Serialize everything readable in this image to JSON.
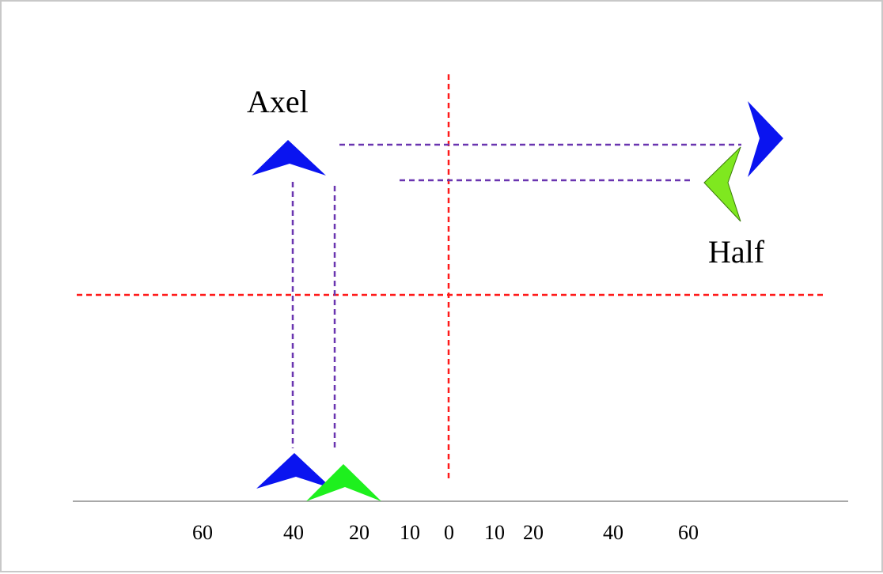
{
  "labels": {
    "axel": "Axel",
    "half": "Half"
  },
  "ticks": [
    "60",
    "40",
    "20",
    "10",
    "0",
    "10",
    "20",
    "40",
    "60"
  ],
  "colors": {
    "axis": "#a8a8a8",
    "crosshair": "#ff1a1a",
    "projection": "#6a35b0",
    "axel_marker": "#0a14f0",
    "half_marker": "#7fe81f",
    "half_marker_bottom": "#1ef01e",
    "background": "#ffffff"
  }
}
